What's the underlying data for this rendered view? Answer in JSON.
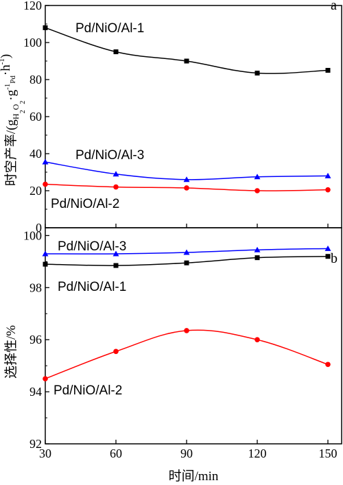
{
  "chart_data": [
    {
      "type": "line",
      "panel_label": "a",
      "ylabel": "时空产率/(g<sub>H<sub>2</sub>O<sub>2</sub></sub>·g<sup>-1</sup><sub>Pd</sub>·h<sup>-1</sup>)",
      "ylabel_parts": [
        "时空产率/(g",
        "H",
        "2",
        "O",
        "2",
        "·g",
        "-1",
        "Pd",
        "·h",
        "-1",
        ")"
      ],
      "ylim": [
        0,
        120
      ],
      "yticks": [
        0,
        20,
        40,
        60,
        80,
        100,
        120
      ],
      "x": [
        30,
        60,
        90,
        120,
        150
      ],
      "series": [
        {
          "name": "Pd/NiO/Al-1",
          "color": "#000000",
          "marker": "square",
          "values": [
            108,
            95,
            90,
            83.5,
            85
          ]
        },
        {
          "name": "Pd/NiO/Al-3",
          "color": "#0000ff",
          "marker": "triangle",
          "values": [
            35.5,
            29,
            26,
            27.5,
            28
          ]
        },
        {
          "name": "Pd/NiO/Al-2",
          "color": "#ff0000",
          "marker": "circle",
          "values": [
            23.5,
            22,
            21.5,
            20,
            20.5
          ]
        }
      ]
    },
    {
      "type": "line",
      "panel_label": "b",
      "ylabel": "选择性/%",
      "ylim": [
        92,
        100.3
      ],
      "yticks": [
        92,
        94,
        96,
        98,
        100
      ],
      "xlim": [
        30,
        150
      ],
      "xticks": [
        30,
        60,
        90,
        120,
        150
      ],
      "xlabel": "时间/min",
      "x": [
        30,
        60,
        90,
        120,
        150
      ],
      "series": [
        {
          "name": "Pd/NiO/Al-3",
          "color": "#0000ff",
          "marker": "triangle",
          "values": [
            99.3,
            99.3,
            99.35,
            99.45,
            99.5
          ]
        },
        {
          "name": "Pd/NiO/Al-1",
          "color": "#000000",
          "marker": "square",
          "values": [
            98.9,
            98.85,
            98.95,
            99.15,
            99.2
          ]
        },
        {
          "name": "Pd/NiO/Al-2",
          "color": "#ff0000",
          "marker": "circle",
          "values": [
            94.5,
            95.55,
            96.35,
            96.0,
            95.05
          ]
        }
      ]
    }
  ]
}
